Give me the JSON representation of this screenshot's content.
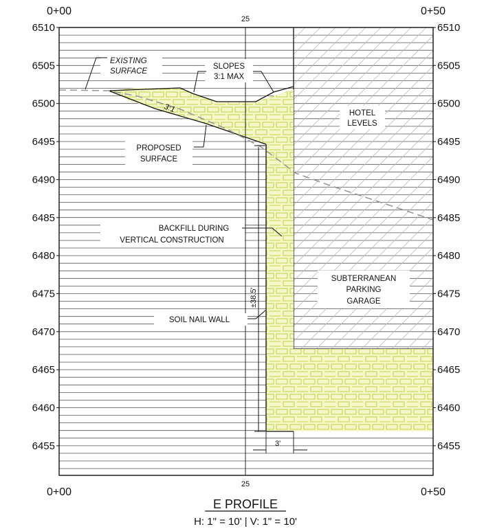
{
  "profile": {
    "title": "E PROFILE",
    "scale_text": "H: 1\" = 10' | V: 1\" = 10'",
    "station_start": "0+00",
    "station_mid": "25",
    "station_end": "0+50",
    "elevations": [
      "6510",
      "6505",
      "6500",
      "6495",
      "6490",
      "6485",
      "6480",
      "6475",
      "6470",
      "6465",
      "6460",
      "6455"
    ]
  },
  "notes": {
    "existing_surface": [
      "EXISTING",
      "SURFACE"
    ],
    "slopes": [
      "SLOPES",
      "3:1 MAX"
    ],
    "slope_ratio": "3:1",
    "proposed_surface": [
      "PROPOSED",
      "SURFACE"
    ],
    "hotel_levels": [
      "HOTEL",
      "LEVELS"
    ],
    "backfill": [
      "BACKFILL DURING",
      "VERTICAL CONSTRUCTION"
    ],
    "wall_height": "±38.5'",
    "subterranean_garage": [
      "SUBTERRANEAN",
      "PARKING",
      "GARAGE"
    ],
    "soil_nail_wall": "SOIL NAIL WALL",
    "offset_dim": "3'"
  },
  "colors": {
    "fill_yellow": "#f5f7c8",
    "brick_green": "#b8cc3a",
    "hatch": "#b9b9b9",
    "line": "#111111",
    "existing_dashed": "#999999"
  }
}
